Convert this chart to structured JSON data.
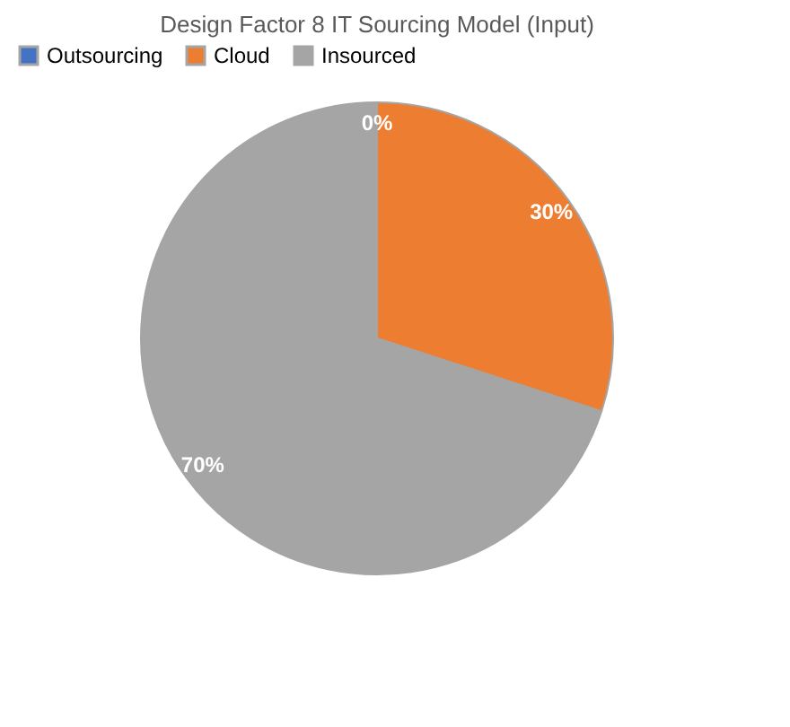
{
  "chart_data": {
    "type": "pie",
    "title": "Design Factor 8 IT Sourcing Model (Input)",
    "categories": [
      "Outsourcing",
      "Cloud",
      "Insourced"
    ],
    "values": [
      0,
      30,
      70
    ],
    "colors": [
      "#4472c4",
      "#ed7d31",
      "#a5a5a5"
    ],
    "value_labels": [
      "0%",
      "30%",
      "70%"
    ],
    "legend": "top"
  }
}
